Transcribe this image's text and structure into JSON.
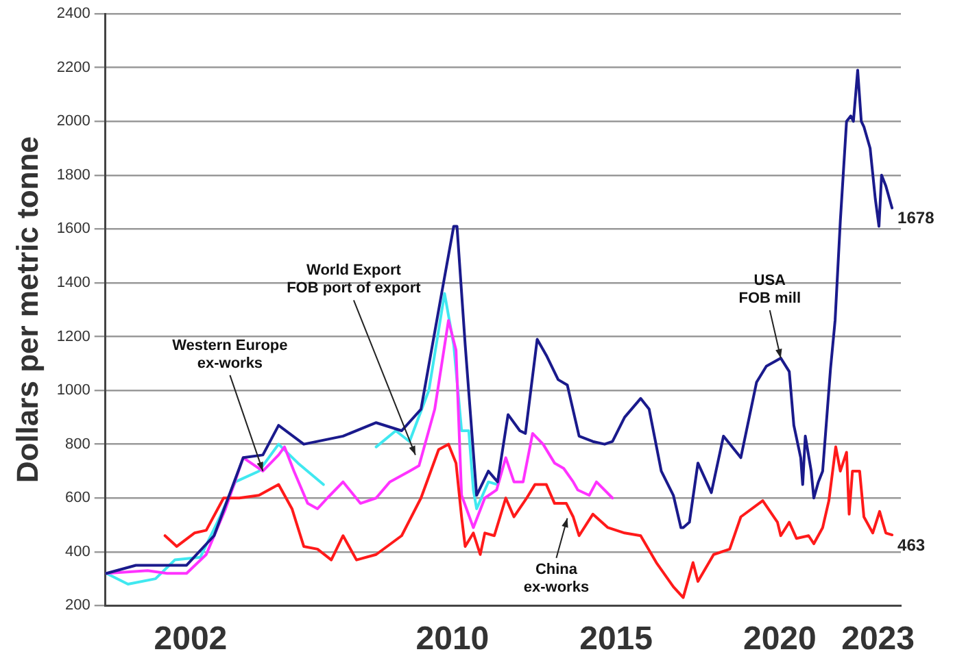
{
  "chart_data": {
    "type": "line",
    "ylabel": "Dollars per metric tonne",
    "xlim": [
      1999.4,
      2023.7
    ],
    "xticks": [
      2002,
      2010,
      2015,
      2020,
      2023
    ],
    "ylim": [
      200,
      2400
    ],
    "yticks": [
      200,
      400,
      600,
      800,
      1000,
      1200,
      1400,
      1600,
      1800,
      2000,
      2200,
      2400
    ],
    "grid": "y",
    "series": [
      {
        "color": "#1a1a8c",
        "x": [
          1999.43,
          2000.33,
          2001.88,
          2002.72,
          2003.61,
          2004.21,
          2004.69,
          2005.46,
          2006.66,
          2007.67,
          2008.45,
          2009.04,
          2009.64,
          2010.04,
          2010.14,
          2010.39,
          2010.74,
          2011.1,
          2011.38,
          2011.7,
          2012.06,
          2012.23,
          2012.59,
          2012.87,
          2013.23,
          2013.51,
          2013.87,
          2014.29,
          2014.65,
          2014.89,
          2015.26,
          2015.75,
          2016.01,
          2016.38,
          2016.75,
          2016.98,
          2017.05,
          2017.24,
          2017.5,
          2017.91,
          2018.28,
          2018.81,
          2019.29,
          2019.59,
          2020.03,
          2020.29,
          2020.43,
          2020.64,
          2020.7,
          2020.78,
          2020.96,
          2021.04,
          2021.18,
          2021.31,
          2021.55,
          2021.69,
          2021.85,
          2022.04,
          2022.17,
          2022.25,
          2022.38,
          2022.49,
          2022.57,
          2022.76,
          2022.92,
          2023.03,
          2023.11,
          2023.24,
          2023.43
        ],
        "values": [
          320,
          350,
          350,
          460,
          750,
          760,
          870,
          800,
          830,
          880,
          850,
          930,
          1340,
          1610,
          1610,
          1170,
          610,
          700,
          660,
          910,
          850,
          840,
          1190,
          1130,
          1040,
          1020,
          830,
          810,
          800,
          810,
          900,
          970,
          930,
          700,
          610,
          490,
          490,
          510,
          730,
          620,
          830,
          750,
          1030,
          1090,
          1120,
          1070,
          870,
          750,
          650,
          830,
          700,
          600,
          660,
          700,
          1080,
          1260,
          1630,
          2000,
          2020,
          2000,
          2190,
          2000,
          1980,
          1900,
          1710,
          1610,
          1800,
          1760,
          1678
        ],
        "value_labels": [
          null,
          null,
          null,
          null,
          null,
          null,
          null,
          null,
          null,
          null,
          null,
          null,
          null,
          null,
          null,
          null,
          null,
          null,
          null,
          null,
          null,
          null,
          null,
          null,
          null,
          null,
          null,
          null,
          null,
          null,
          null,
          null,
          null,
          null,
          null,
          null,
          null,
          null,
          null,
          null,
          null,
          null,
          null,
          null,
          null,
          null,
          null,
          null,
          null,
          null,
          null,
          null,
          null,
          null,
          null,
          null,
          null,
          null,
          null,
          null,
          null,
          null,
          null,
          null,
          null,
          null,
          null,
          null,
          "1678"
        ]
      },
      {
        "color": "#ff1a1a",
        "x": [
          2001.22,
          2001.58,
          2002.12,
          2002.48,
          2003.01,
          2003.49,
          2004.09,
          2004.69,
          2005.1,
          2005.46,
          2005.88,
          2006.3,
          2006.66,
          2007.07,
          2007.67,
          2008.45,
          2009.04,
          2009.58,
          2009.88,
          2010.11,
          2010.28,
          2010.39,
          2010.64,
          2010.85,
          2010.99,
          2011.28,
          2011.63,
          2011.88,
          2012.27,
          2012.52,
          2012.87,
          2013.12,
          2013.48,
          2013.69,
          2013.87,
          2014.29,
          2014.75,
          2015.26,
          2015.75,
          2016.23,
          2016.75,
          2017.05,
          2017.35,
          2017.5,
          2017.98,
          2018.47,
          2018.81,
          2019.48,
          2019.93,
          2020.03,
          2020.29,
          2020.51,
          2020.88,
          2021.04,
          2021.31,
          2021.5,
          2021.71,
          2021.85,
          2022.04,
          2022.12,
          2022.22,
          2022.44,
          2022.57,
          2022.84,
          2023.05,
          2023.24,
          2023.43
        ],
        "values": [
          460,
          420,
          470,
          480,
          600,
          600,
          610,
          650,
          560,
          420,
          410,
          370,
          460,
          370,
          390,
          460,
          600,
          780,
          800,
          730,
          530,
          420,
          470,
          390,
          470,
          460,
          600,
          530,
          600,
          650,
          650,
          580,
          580,
          530,
          460,
          540,
          490,
          470,
          460,
          360,
          270,
          230,
          360,
          290,
          390,
          410,
          530,
          590,
          510,
          460,
          510,
          450,
          460,
          430,
          490,
          590,
          790,
          700,
          770,
          540,
          700,
          700,
          530,
          470,
          550,
          470,
          463
        ],
        "value_labels": [
          null,
          null,
          null,
          null,
          null,
          null,
          null,
          null,
          null,
          null,
          null,
          null,
          null,
          null,
          null,
          null,
          null,
          null,
          null,
          null,
          null,
          null,
          null,
          null,
          null,
          null,
          null,
          null,
          null,
          null,
          null,
          null,
          null,
          null,
          null,
          null,
          null,
          null,
          null,
          null,
          null,
          null,
          null,
          null,
          null,
          null,
          null,
          null,
          null,
          null,
          null,
          null,
          null,
          null,
          null,
          null,
          null,
          null,
          null,
          null,
          null,
          null,
          null,
          null,
          null,
          null,
          "463"
        ]
      },
      {
        "color": "#ff33ff",
        "x": [
          1999.43,
          2000.69,
          2001.28,
          2001.88,
          2002.48,
          2003.07,
          2003.61,
          2004.21,
          2004.69,
          2004.87,
          2005.16,
          2005.58,
          2005.88,
          2006.18,
          2006.66,
          2007.19,
          2007.67,
          2008.09,
          2008.69,
          2008.98,
          2009.46,
          2009.88,
          2010.11,
          2010.28,
          2010.64,
          2010.99,
          2011.35,
          2011.63,
          2011.88,
          2012.16,
          2012.45,
          2012.77,
          2013.12,
          2013.4,
          2013.69,
          2013.83,
          2014.18,
          2014.4,
          2014.89
        ],
        "values": [
          320,
          330,
          320,
          320,
          390,
          560,
          750,
          700,
          760,
          790,
          700,
          580,
          560,
          600,
          660,
          580,
          600,
          660,
          700,
          720,
          930,
          1260,
          1150,
          610,
          490,
          600,
          630,
          750,
          660,
          660,
          840,
          800,
          730,
          710,
          660,
          630,
          610,
          660,
          600
        ]
      },
      {
        "color": "#40e8f0",
        "x": [
          1999.43,
          2000.09,
          2000.93,
          2001.52,
          2002.3,
          2002.9,
          2003.37,
          2004.09,
          2004.69,
          2005.28,
          2006.06,
          2007.0,
          2007.67,
          2008.27,
          2008.69,
          2009.28,
          2009.76,
          2010.04,
          2010.28,
          2010.5,
          2010.64,
          2010.74,
          2011.1,
          2011.38
        ],
        "values": [
          320,
          280,
          300,
          370,
          380,
          530,
          660,
          700,
          800,
          730,
          650,
          null,
          790,
          850,
          810,
          1000,
          1360,
          1170,
          850,
          850,
          630,
          560,
          660,
          650
        ]
      }
    ],
    "annotations": [
      {
        "text": "USA\nFOB mill",
        "x": 2020.03,
        "y": 1120
      },
      {
        "text": "China\nex-works",
        "x": 2013.51,
        "y": 525
      },
      {
        "text": "World Export\nFOB port of export",
        "x": 2008.87,
        "y": 760
      },
      {
        "text": "Western Europe\nex-works",
        "x": 2004.21,
        "y": 700
      }
    ]
  }
}
